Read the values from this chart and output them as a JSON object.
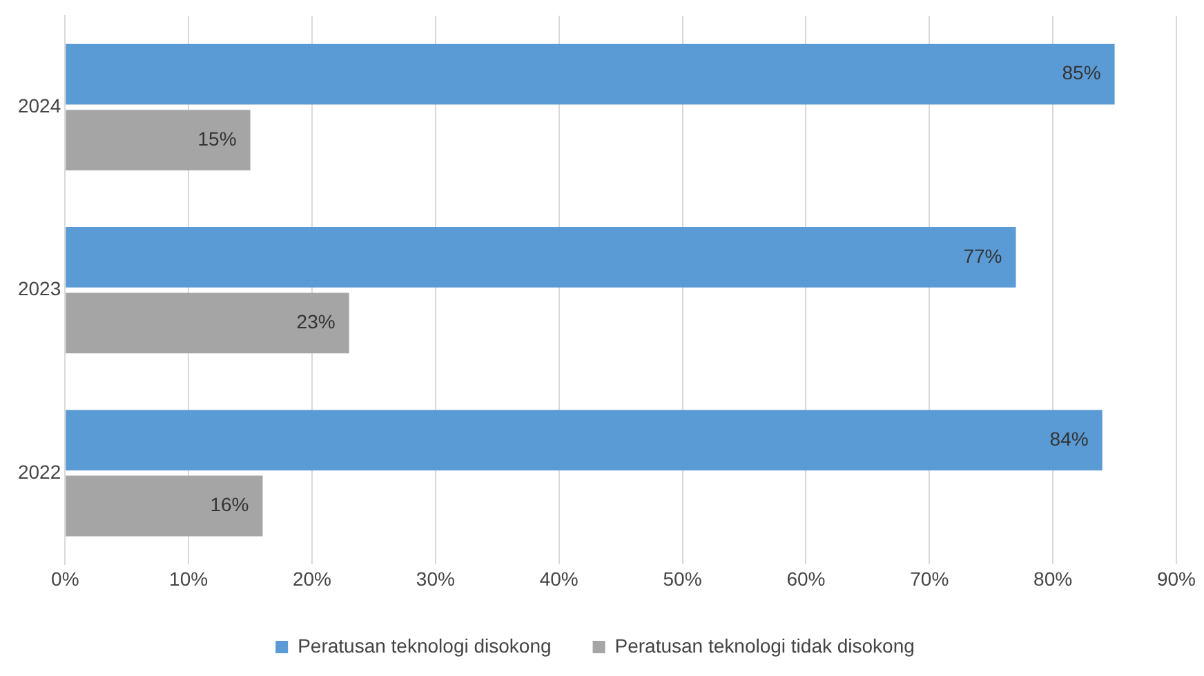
{
  "chart_data": {
    "type": "bar",
    "orientation": "horizontal",
    "categories": [
      "2024",
      "2023",
      "2022"
    ],
    "series": [
      {
        "name": "Peratusan teknologi disokong",
        "color": "#5b9bd5",
        "values": [
          85,
          77,
          84
        ],
        "value_labels": [
          "85%",
          "77%",
          "84%"
        ]
      },
      {
        "name": "Peratusan teknologi tidak disokong",
        "color": "#a5a5a5",
        "values": [
          15,
          23,
          16
        ],
        "value_labels": [
          "15%",
          "23%",
          "16%"
        ]
      }
    ],
    "xlim": [
      0,
      90
    ],
    "xticks": [
      {
        "value": 0,
        "label": "0%"
      },
      {
        "value": 10,
        "label": "10%"
      },
      {
        "value": 20,
        "label": "20%"
      },
      {
        "value": 30,
        "label": "30%"
      },
      {
        "value": 40,
        "label": "40%"
      },
      {
        "value": 50,
        "label": "50%"
      },
      {
        "value": 60,
        "label": "60%"
      },
      {
        "value": 70,
        "label": "70%"
      },
      {
        "value": 80,
        "label": "80%"
      },
      {
        "value": 90,
        "label": "90%"
      }
    ],
    "grid": "x",
    "legend": "bottom"
  }
}
